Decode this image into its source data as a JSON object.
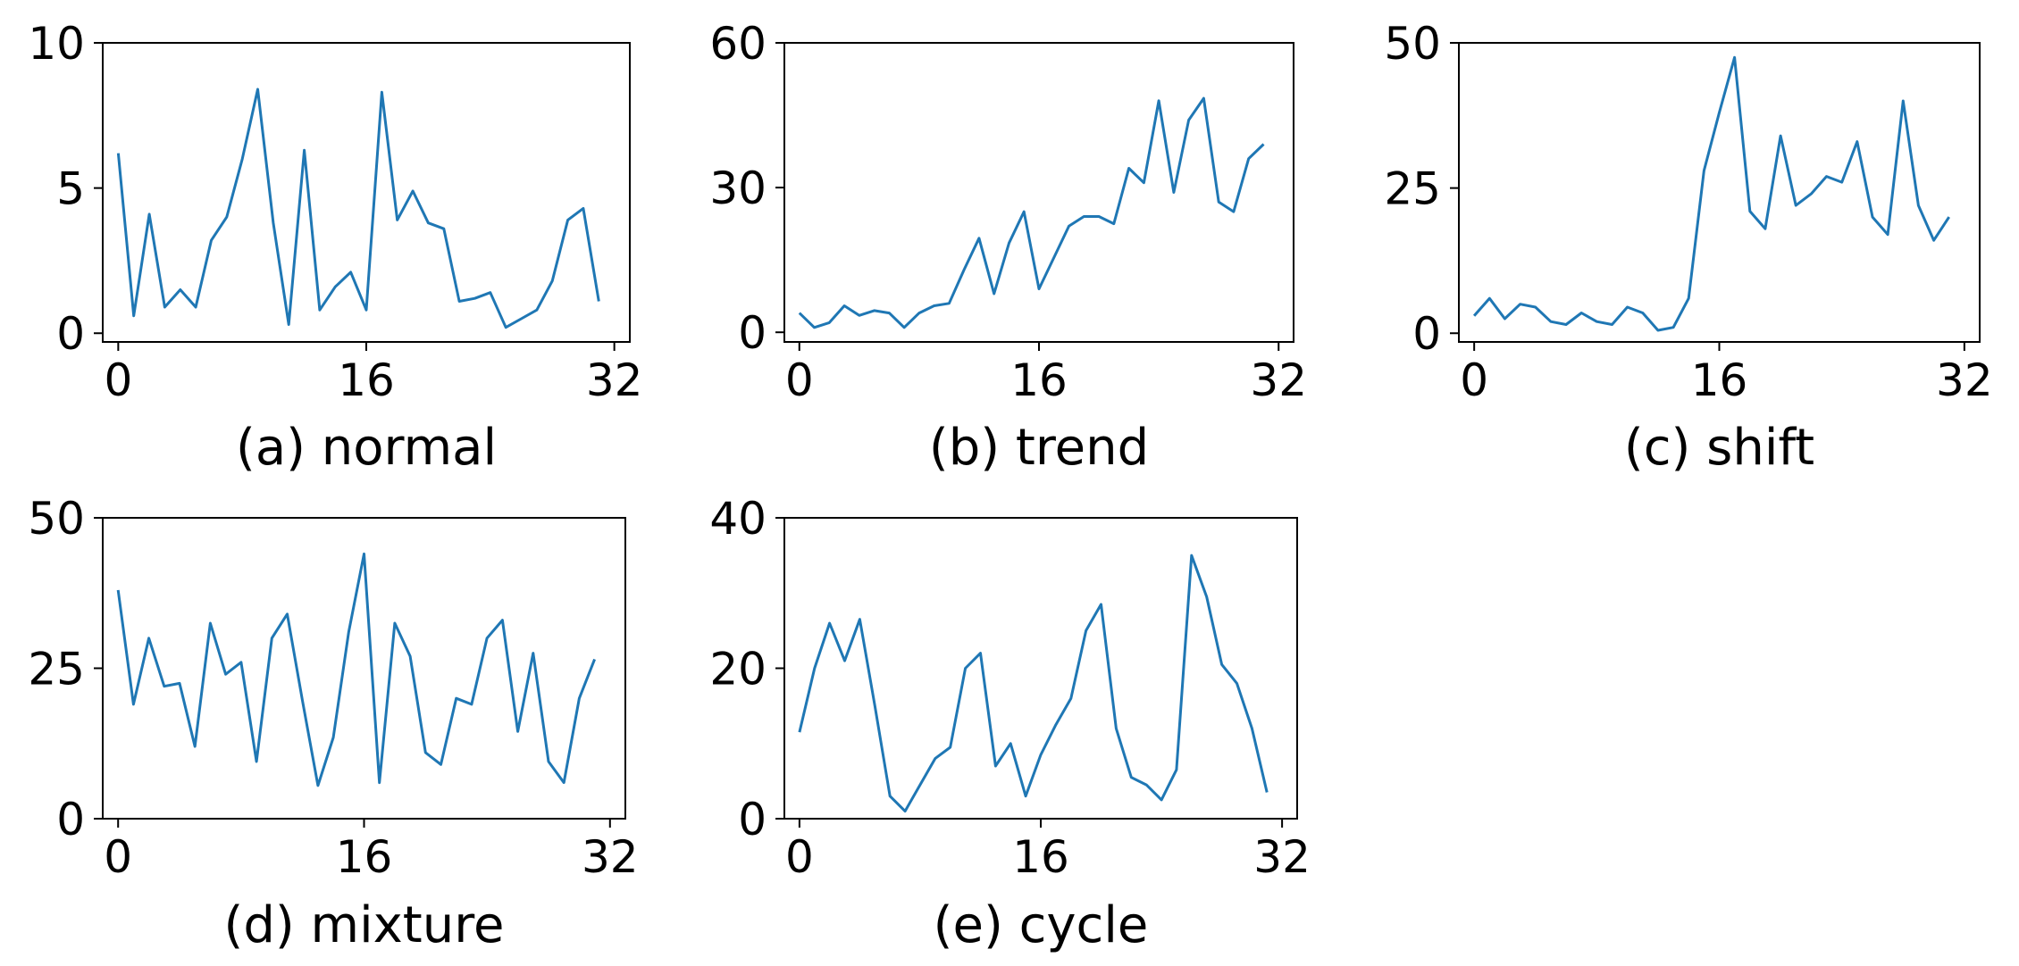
{
  "series_color": "#1f77b4",
  "chart_data": [
    {
      "type": "line",
      "caption": "(a) normal",
      "xlim": [
        -1,
        33
      ],
      "ylim": [
        -0.3,
        10
      ],
      "xticks": [
        0,
        16,
        32
      ],
      "xtick_labels": [
        "0",
        "16",
        "32"
      ],
      "yticks": [
        0,
        5,
        10
      ],
      "ytick_labels": [
        "0",
        "5",
        "10"
      ],
      "x": [
        0,
        1,
        2,
        3,
        4,
        5,
        6,
        7,
        8,
        9,
        10,
        11,
        12,
        13,
        14,
        15,
        16,
        17,
        18,
        19,
        20,
        21,
        22,
        23,
        24,
        25,
        26,
        27,
        28,
        29,
        30,
        31
      ],
      "values": [
        6.2,
        0.6,
        4.1,
        0.9,
        1.5,
        0.9,
        3.2,
        4.0,
        6.0,
        8.4,
        3.8,
        0.3,
        6.3,
        0.8,
        1.6,
        2.1,
        0.8,
        8.3,
        3.9,
        4.9,
        3.8,
        3.6,
        1.1,
        1.2,
        1.4,
        0.2,
        0.5,
        0.8,
        1.8,
        3.9,
        4.3,
        1.1
      ]
    },
    {
      "type": "line",
      "caption": "(b) trend",
      "xlim": [
        -1,
        33
      ],
      "ylim": [
        -2,
        60
      ],
      "xticks": [
        0,
        16,
        32
      ],
      "xtick_labels": [
        "0",
        "16",
        "32"
      ],
      "yticks": [
        0,
        30,
        60
      ],
      "ytick_labels": [
        "0",
        "30",
        "60"
      ],
      "x": [
        0,
        1,
        2,
        3,
        4,
        5,
        6,
        7,
        8,
        9,
        10,
        11,
        12,
        13,
        14,
        15,
        16,
        17,
        18,
        19,
        20,
        21,
        22,
        23,
        24,
        25,
        26,
        27,
        28,
        29,
        30,
        31
      ],
      "values": [
        4,
        1,
        2,
        5.5,
        3.5,
        4.5,
        4,
        1,
        4,
        5.5,
        6,
        13,
        19.5,
        8,
        18.5,
        25,
        9,
        15.5,
        22,
        24,
        24,
        22.5,
        34,
        31,
        48,
        29,
        44,
        48.5,
        27,
        25,
        36,
        39
      ]
    },
    {
      "type": "line",
      "caption": "(c) shift",
      "xlim": [
        -1,
        33
      ],
      "ylim": [
        -1.5,
        50
      ],
      "xticks": [
        0,
        16,
        32
      ],
      "xtick_labels": [
        "0",
        "16",
        "32"
      ],
      "yticks": [
        0,
        25,
        50
      ],
      "ytick_labels": [
        "0",
        "25",
        "50"
      ],
      "x": [
        0,
        1,
        2,
        3,
        4,
        5,
        6,
        7,
        8,
        9,
        10,
        11,
        12,
        13,
        14,
        15,
        16,
        17,
        18,
        19,
        20,
        21,
        22,
        23,
        24,
        25,
        26,
        27,
        28,
        29,
        30,
        31
      ],
      "values": [
        3,
        6,
        2.5,
        5,
        4.5,
        2,
        1.5,
        3.5,
        2,
        1.5,
        4.5,
        3.5,
        0.5,
        1,
        6,
        28,
        38,
        47.5,
        21,
        18,
        34,
        22,
        24,
        27,
        26,
        33,
        20,
        17,
        40,
        22,
        16,
        20
      ]
    },
    {
      "type": "line",
      "caption": "(d) mixture",
      "xlim": [
        -1,
        33
      ],
      "ylim": [
        0,
        50
      ],
      "xticks": [
        0,
        16,
        32
      ],
      "xtick_labels": [
        "0",
        "16",
        "32"
      ],
      "yticks": [
        0,
        25,
        50
      ],
      "ytick_labels": [
        "0",
        "25",
        "50"
      ],
      "x": [
        0,
        1,
        2,
        3,
        4,
        5,
        6,
        7,
        8,
        9,
        10,
        11,
        12,
        13,
        14,
        15,
        16,
        17,
        18,
        19,
        20,
        21,
        22,
        23,
        24,
        25,
        26,
        27,
        28,
        29,
        30,
        31
      ],
      "values": [
        38,
        19,
        30,
        22,
        22.5,
        12,
        32.5,
        24,
        26,
        9.5,
        30,
        34,
        19.5,
        5.5,
        13.5,
        31,
        44,
        6,
        32.5,
        27,
        11,
        9,
        20,
        19,
        30,
        33,
        14.5,
        27.5,
        9.5,
        6,
        20,
        26.5
      ]
    },
    {
      "type": "line",
      "caption": "(e) cycle",
      "xlim": [
        -1,
        33
      ],
      "ylim": [
        0,
        40
      ],
      "xticks": [
        0,
        16,
        32
      ],
      "xtick_labels": [
        "0",
        "16",
        "32"
      ],
      "yticks": [
        0,
        20,
        40
      ],
      "ytick_labels": [
        "0",
        "20",
        "40"
      ],
      "x": [
        0,
        1,
        2,
        3,
        4,
        5,
        6,
        7,
        8,
        9,
        10,
        11,
        12,
        13,
        14,
        15,
        16,
        17,
        18,
        19,
        20,
        21,
        22,
        23,
        24,
        25,
        26,
        27,
        28,
        29,
        30,
        31
      ],
      "values": [
        11.5,
        20,
        26,
        21,
        26.5,
        15,
        3,
        1,
        4.5,
        8,
        9.5,
        20,
        22,
        7,
        10,
        3,
        8.5,
        12.5,
        16,
        25,
        28.5,
        12,
        5.5,
        4.5,
        2.5,
        6.5,
        35,
        29.5,
        20.5,
        18,
        12,
        3.5
      ]
    }
  ]
}
